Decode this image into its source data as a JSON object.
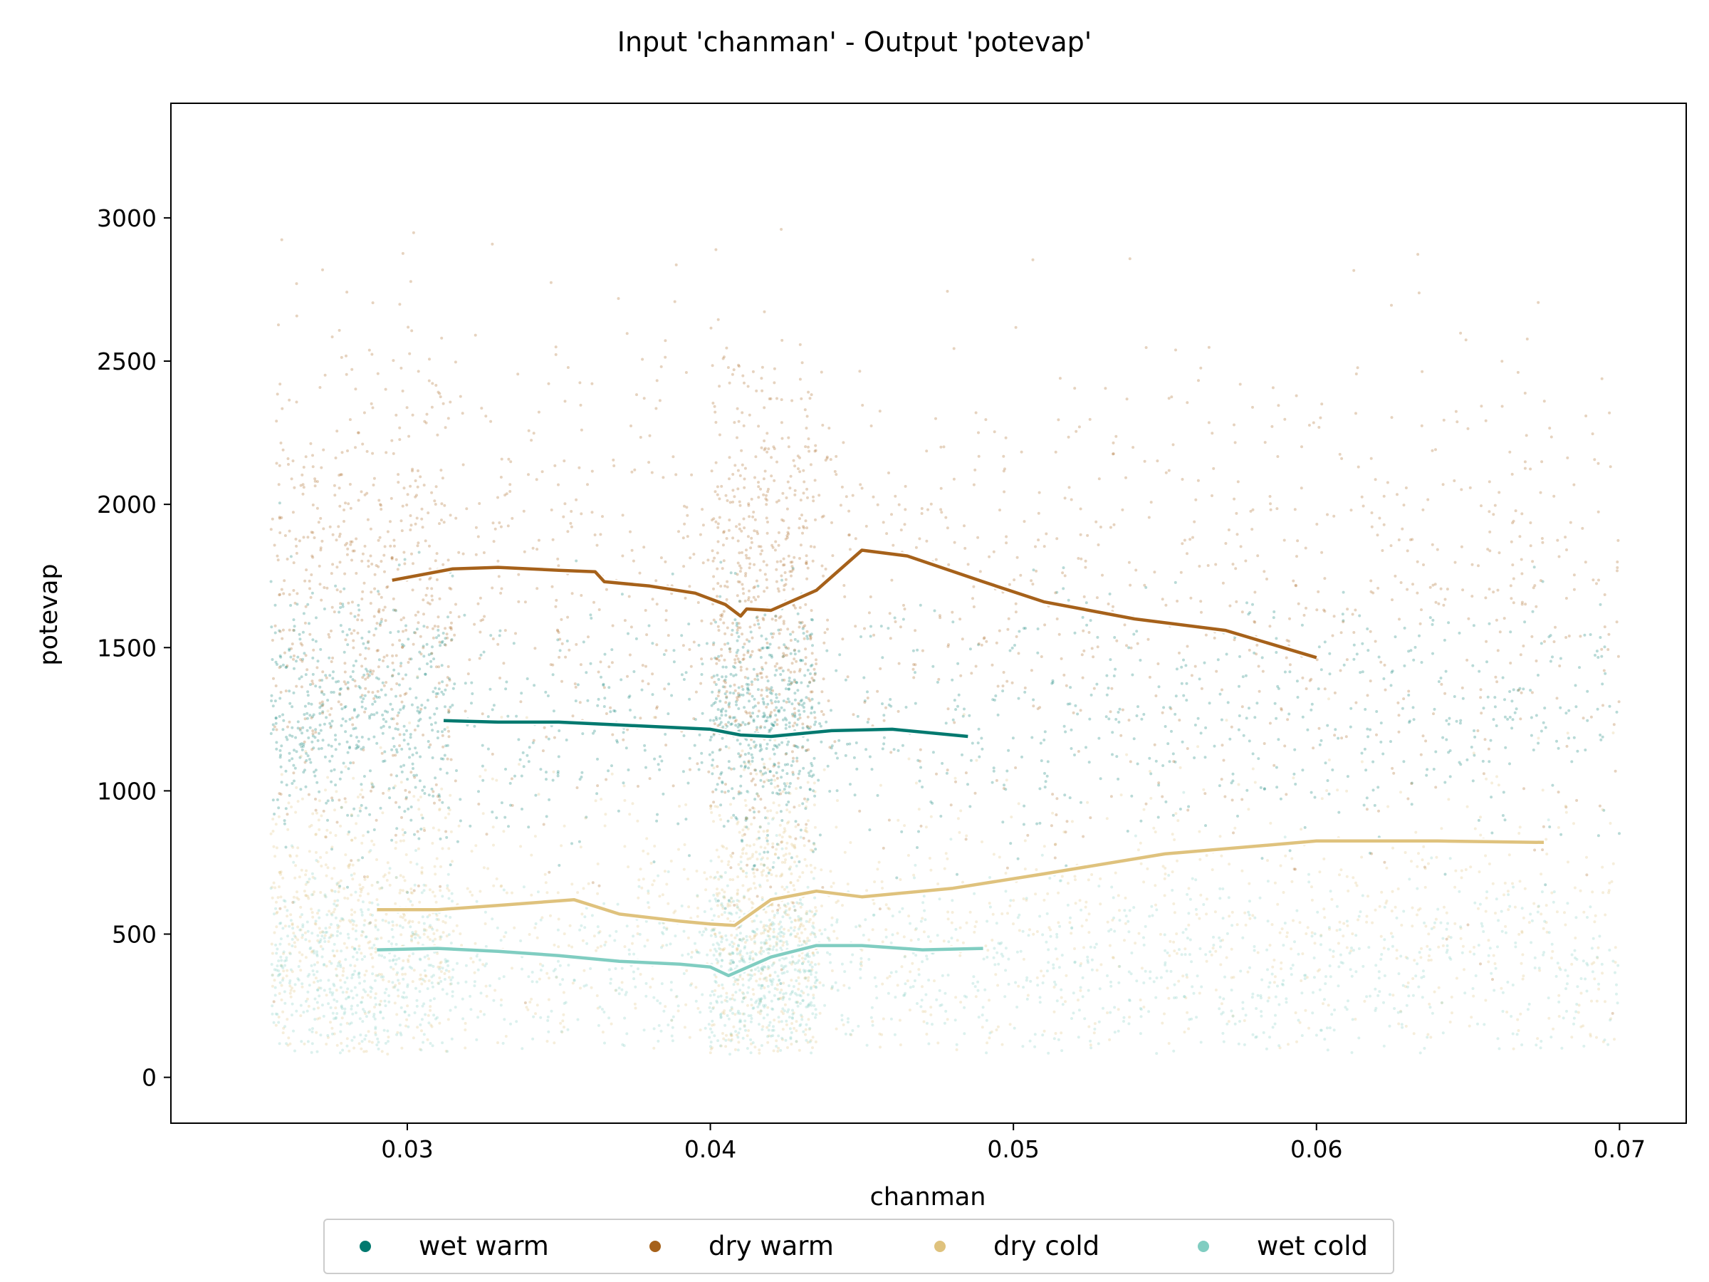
{
  "chart_data": {
    "type": "scatter",
    "title": "Input 'chanman' - Output 'potevap'",
    "xlabel": "chanman",
    "ylabel": "potevap",
    "xlim": [
      0.0222,
      0.0722
    ],
    "ylim": [
      -160,
      3400
    ],
    "xticks": [
      0.03,
      0.04,
      0.05,
      0.06,
      0.07
    ],
    "xtick_labels": [
      "0.03",
      "0.04",
      "0.05",
      "0.06",
      "0.07"
    ],
    "yticks": [
      0,
      500,
      1000,
      1500,
      2000,
      2500,
      3000
    ],
    "ytick_labels": [
      "0",
      "500",
      "1000",
      "1500",
      "2000",
      "2500",
      "3000"
    ],
    "grid": false,
    "legend_position": "bottom-center (below axes)",
    "series": [
      {
        "name": "wet warm",
        "color": "#01796f",
        "scatter_spec": {
          "xmin": 0.0255,
          "xmax": 0.07,
          "center": 1250,
          "spread": 220,
          "count": 1700
        },
        "trend": {
          "x": [
            0.0312,
            0.033,
            0.035,
            0.037,
            0.039,
            0.04,
            0.041,
            0.042,
            0.044,
            0.046,
            0.0485
          ],
          "y": [
            1245,
            1240,
            1240,
            1230,
            1220,
            1215,
            1195,
            1190,
            1210,
            1215,
            1190
          ]
        }
      },
      {
        "name": "dry warm",
        "color": "#a6611a",
        "scatter_spec": {
          "xmin": 0.0255,
          "xmax": 0.07,
          "center": 1700,
          "spread": 420,
          "count": 2200
        },
        "trend": {
          "x": [
            0.0295,
            0.0315,
            0.033,
            0.035,
            0.0362,
            0.0365,
            0.038,
            0.0395,
            0.0405,
            0.041,
            0.0412,
            0.042,
            0.0435,
            0.045,
            0.0465,
            0.049,
            0.051,
            0.054,
            0.057,
            0.06
          ],
          "y": [
            1735,
            1775,
            1780,
            1770,
            1765,
            1730,
            1715,
            1690,
            1650,
            1610,
            1635,
            1630,
            1700,
            1840,
            1820,
            1730,
            1660,
            1600,
            1560,
            1465
          ]
        }
      },
      {
        "name": "dry cold",
        "color": "#dfc27d",
        "scatter_spec": {
          "xmin": 0.0255,
          "xmax": 0.07,
          "center": 550,
          "spread": 260,
          "count": 1900
        },
        "trend": {
          "x": [
            0.029,
            0.031,
            0.033,
            0.0355,
            0.037,
            0.039,
            0.04,
            0.0408,
            0.042,
            0.0435,
            0.045,
            0.048,
            0.051,
            0.055,
            0.06,
            0.064,
            0.0675
          ],
          "y": [
            585,
            585,
            600,
            620,
            570,
            545,
            535,
            530,
            620,
            650,
            630,
            660,
            710,
            780,
            825,
            825,
            820
          ]
        }
      },
      {
        "name": "wet cold",
        "color": "#80cdc1",
        "scatter_spec": {
          "xmin": 0.0255,
          "xmax": 0.07,
          "center": 390,
          "spread": 160,
          "count": 1900
        },
        "trend": {
          "x": [
            0.029,
            0.031,
            0.033,
            0.035,
            0.037,
            0.039,
            0.04,
            0.0406,
            0.042,
            0.0435,
            0.045,
            0.047,
            0.049
          ],
          "y": [
            445,
            450,
            440,
            425,
            405,
            395,
            385,
            355,
            420,
            460,
            460,
            445,
            450
          ]
        }
      }
    ]
  }
}
